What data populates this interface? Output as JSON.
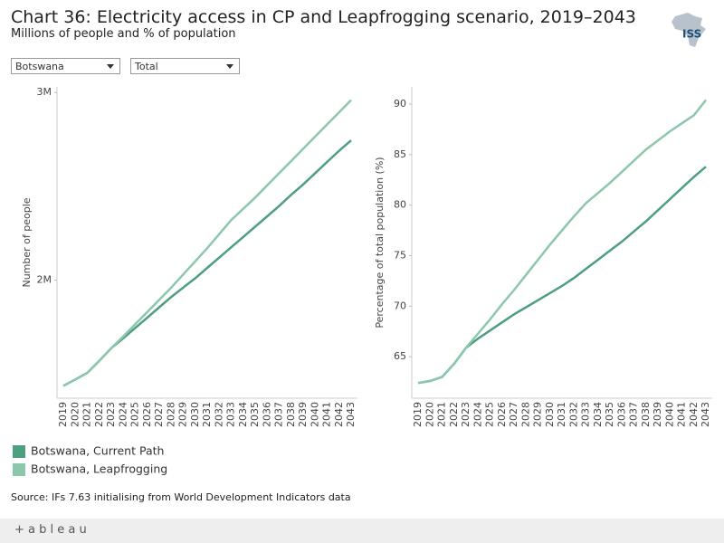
{
  "title": "Chart 36: Electricity access in CP and Leapfrogging scenario, 2019–2043",
  "subtitle": "Millions of people and % of population",
  "logo": "ISS",
  "filters": [
    "Botswana",
    "Total"
  ],
  "source": "Source: IFs 7.63 initialising from World Development Indicators data",
  "footer": "+ a b l e a u",
  "chart_data": [
    {
      "type": "line",
      "y_label": "Number of people",
      "categories": [
        "2019",
        "2020",
        "2021",
        "2022",
        "2023",
        "2024",
        "2025",
        "2026",
        "2027",
        "2028",
        "2029",
        "2030",
        "2031",
        "2032",
        "2033",
        "2034",
        "2035",
        "2036",
        "2037",
        "2038",
        "2039",
        "2040",
        "2041",
        "2042",
        "2043"
      ],
      "ylim": [
        1370000,
        3030000
      ],
      "yticks": [
        {
          "value": 2000000,
          "label": "2M"
        },
        {
          "value": 3000000,
          "label": "3M"
        }
      ],
      "grid": false,
      "legend": "bottom-left",
      "series": [
        {
          "name": "Botswana, Current Path",
          "color": "#4e9e80",
          "values": [
            1436000,
            1470000,
            1505000,
            1570000,
            1637000,
            1690000,
            1745000,
            1800000,
            1855000,
            1910000,
            1960000,
            2010000,
            2065000,
            2120000,
            2175000,
            2230000,
            2285000,
            2340000,
            2395000,
            2455000,
            2510000,
            2570000,
            2630000,
            2690000,
            2745000
          ]
        },
        {
          "name": "Botswana, Leapfrogging",
          "color": "#8cc7ab",
          "values": [
            1436000,
            1470000,
            1505000,
            1570000,
            1637000,
            1700000,
            1765000,
            1830000,
            1895000,
            1960000,
            2030000,
            2100000,
            2170000,
            2245000,
            2320000,
            2380000,
            2440000,
            2505000,
            2570000,
            2635000,
            2700000,
            2765000,
            2830000,
            2895000,
            2960000
          ]
        }
      ]
    },
    {
      "type": "line",
      "y_label": "Percentage of total population (%)",
      "categories": [
        "2019",
        "2020",
        "2021",
        "2022",
        "2023",
        "2024",
        "2025",
        "2026",
        "2027",
        "2028",
        "2029",
        "2030",
        "2031",
        "2032",
        "2033",
        "2034",
        "2035",
        "2036",
        "2037",
        "2038",
        "2039",
        "2040",
        "2041",
        "2042",
        "2043"
      ],
      "ylim": [
        60.9,
        91.7
      ],
      "yticks": [
        65,
        70,
        75,
        80,
        85,
        90
      ],
      "grid": false,
      "series": [
        {
          "color": "#4e9e80",
          "values": [
            62.4,
            62.6,
            63.0,
            64.3,
            65.9,
            66.8,
            67.6,
            68.4,
            69.2,
            69.9,
            70.6,
            71.3,
            72.0,
            72.8,
            73.7,
            74.6,
            75.5,
            76.4,
            77.4,
            78.4,
            79.5,
            80.6,
            81.7,
            82.8,
            83.8
          ]
        },
        {
          "color": "#8cc7ab",
          "values": [
            62.4,
            62.6,
            63.0,
            64.3,
            65.9,
            67.3,
            68.7,
            70.2,
            71.6,
            73.1,
            74.6,
            76.1,
            77.5,
            78.9,
            80.2,
            81.2,
            82.2,
            83.3,
            84.4,
            85.5,
            86.4,
            87.3,
            88.1,
            88.9,
            90.4
          ]
        }
      ]
    }
  ]
}
